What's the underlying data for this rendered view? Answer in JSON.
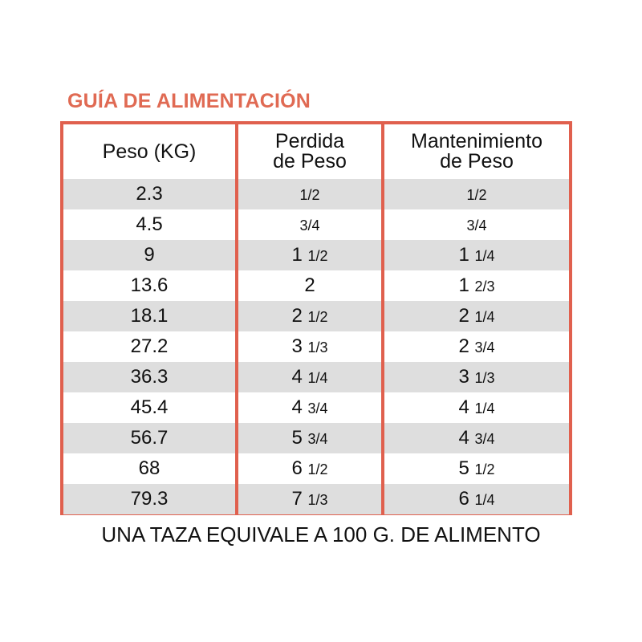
{
  "title": "GUÍA DE ALIMENTACIÓN",
  "headers": [
    {
      "line1": "Peso (KG)",
      "line2": ""
    },
    {
      "line1": "Perdida",
      "line2": "de Peso"
    },
    {
      "line1": "Mantenimiento",
      "line2": "de Peso"
    }
  ],
  "rows": [
    {
      "peso": "2.3",
      "perdida": {
        "whole": "",
        "frac": "1/2"
      },
      "mant": {
        "whole": "",
        "frac": "1/2"
      }
    },
    {
      "peso": "4.5",
      "perdida": {
        "whole": "",
        "frac": "3/4"
      },
      "mant": {
        "whole": "",
        "frac": "3/4"
      }
    },
    {
      "peso": "9",
      "perdida": {
        "whole": "1",
        "frac": "1/2"
      },
      "mant": {
        "whole": "1",
        "frac": "1/4"
      }
    },
    {
      "peso": "13.6",
      "perdida": {
        "whole": "2",
        "frac": ""
      },
      "mant": {
        "whole": "1",
        "frac": "2/3"
      }
    },
    {
      "peso": "18.1",
      "perdida": {
        "whole": "2",
        "frac": "1/2"
      },
      "mant": {
        "whole": "2",
        "frac": "1/4"
      }
    },
    {
      "peso": "27.2",
      "perdida": {
        "whole": "3",
        "frac": "1/3"
      },
      "mant": {
        "whole": "2",
        "frac": "3/4"
      }
    },
    {
      "peso": "36.3",
      "perdida": {
        "whole": "4",
        "frac": "1/4"
      },
      "mant": {
        "whole": "3",
        "frac": "1/3"
      }
    },
    {
      "peso": "45.4",
      "perdida": {
        "whole": "4",
        "frac": "3/4"
      },
      "mant": {
        "whole": "4",
        "frac": "1/4"
      }
    },
    {
      "peso": "56.7",
      "perdida": {
        "whole": "5",
        "frac": "3/4"
      },
      "mant": {
        "whole": "4",
        "frac": "3/4"
      }
    },
    {
      "peso": "68",
      "perdida": {
        "whole": "6",
        "frac": "1/2"
      },
      "mant": {
        "whole": "5",
        "frac": "1/2"
      }
    },
    {
      "peso": "79.3",
      "perdida": {
        "whole": "7",
        "frac": "1/3"
      },
      "mant": {
        "whole": "6",
        "frac": "1/4"
      }
    }
  ],
  "footer": "UNA TAZA EQUIVALE A 100 G. DE ALIMENTO",
  "colors": {
    "accent": "#e0604e",
    "stripe": "#dedede"
  }
}
